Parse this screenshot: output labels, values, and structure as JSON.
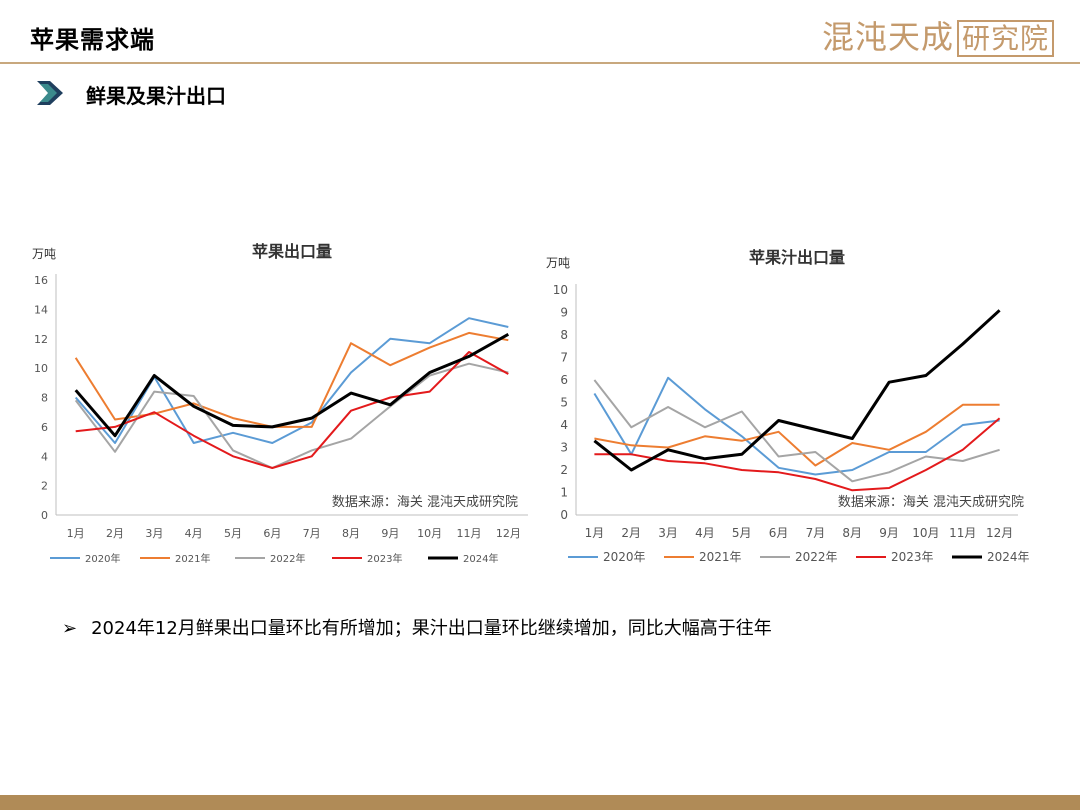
{
  "header": {
    "title": "苹果需求端",
    "logo_main": "混沌天成",
    "logo_boxed": "研究院"
  },
  "section": {
    "title": "鲜果及果汁出口"
  },
  "colors": {
    "2020年": "#5b9bd5",
    "2021年": "#ed7d31",
    "2022年": "#a5a5a5",
    "2023年": "#e31a1c",
    "2024年": "#000000",
    "accent": "#c49a6c"
  },
  "chart_data": [
    {
      "type": "line",
      "title": "苹果出口量",
      "ylabel": "万吨",
      "source": "数据来源：海关  混沌天成研究院",
      "ylim": [
        0,
        16
      ],
      "yticks": [
        0,
        2,
        4,
        6,
        8,
        10,
        12,
        14,
        16
      ],
      "categories": [
        "1月",
        "2月",
        "3月",
        "4月",
        "5月",
        "6月",
        "7月",
        "8月",
        "9月",
        "10月",
        "11月",
        "12月"
      ],
      "legend_position": "bottom",
      "grid": false,
      "series": [
        {
          "name": "2020年",
          "values": [
            8.0,
            4.9,
            9.4,
            4.9,
            5.6,
            4.9,
            6.3,
            9.7,
            12.0,
            11.7,
            13.4,
            12.8
          ]
        },
        {
          "name": "2021年",
          "values": [
            10.7,
            6.5,
            6.9,
            7.6,
            6.6,
            6.0,
            6.0,
            11.7,
            10.2,
            11.4,
            12.4,
            11.9
          ]
        },
        {
          "name": "2022年",
          "values": [
            7.8,
            4.3,
            8.4,
            8.1,
            4.4,
            3.2,
            4.4,
            5.2,
            7.4,
            9.5,
            10.3,
            9.7
          ]
        },
        {
          "name": "2023年",
          "values": [
            5.7,
            6.0,
            7.0,
            5.4,
            4.0,
            3.2,
            4.0,
            7.1,
            8.0,
            8.4,
            11.1,
            9.6
          ]
        },
        {
          "name": "2024年",
          "values": [
            8.5,
            5.4,
            9.5,
            7.4,
            6.1,
            6.0,
            6.6,
            8.3,
            7.5,
            9.7,
            10.8,
            12.3
          ]
        }
      ]
    },
    {
      "type": "line",
      "title": "苹果汁出口量",
      "ylabel": "万吨",
      "source": "数据来源：海关  混沌天成研究院",
      "ylim": [
        0,
        10
      ],
      "yticks": [
        0,
        1,
        2,
        3,
        4,
        5,
        6,
        7,
        8,
        9,
        10
      ],
      "categories": [
        "1月",
        "2月",
        "3月",
        "4月",
        "5月",
        "6月",
        "7月",
        "8月",
        "9月",
        "10月",
        "11月",
        "12月"
      ],
      "legend_position": "bottom",
      "grid": false,
      "series": [
        {
          "name": "2020年",
          "values": [
            5.4,
            2.7,
            6.1,
            4.7,
            3.5,
            2.1,
            1.8,
            2.0,
            2.8,
            2.8,
            4.0,
            4.2
          ]
        },
        {
          "name": "2021年",
          "values": [
            3.4,
            3.1,
            3.0,
            3.5,
            3.3,
            3.7,
            2.2,
            3.2,
            2.9,
            3.7,
            4.9,
            4.9
          ]
        },
        {
          "name": "2022年",
          "values": [
            6.0,
            3.9,
            4.8,
            3.9,
            4.6,
            2.6,
            2.8,
            1.5,
            1.9,
            2.6,
            2.4,
            2.9
          ]
        },
        {
          "name": "2023年",
          "values": [
            2.7,
            2.7,
            2.4,
            2.3,
            2.0,
            1.9,
            1.6,
            1.1,
            1.2,
            2.0,
            2.9,
            4.3
          ]
        },
        {
          "name": "2024年",
          "values": [
            3.3,
            2.0,
            2.9,
            2.5,
            2.7,
            4.2,
            3.8,
            3.4,
            5.9,
            6.2,
            7.6,
            9.1
          ]
        }
      ]
    }
  ],
  "bullet": {
    "mark": "➢",
    "text": "2024年12月鲜果出口量环比有所增加；果汁出口量环比继续增加，同比大幅高于往年"
  }
}
